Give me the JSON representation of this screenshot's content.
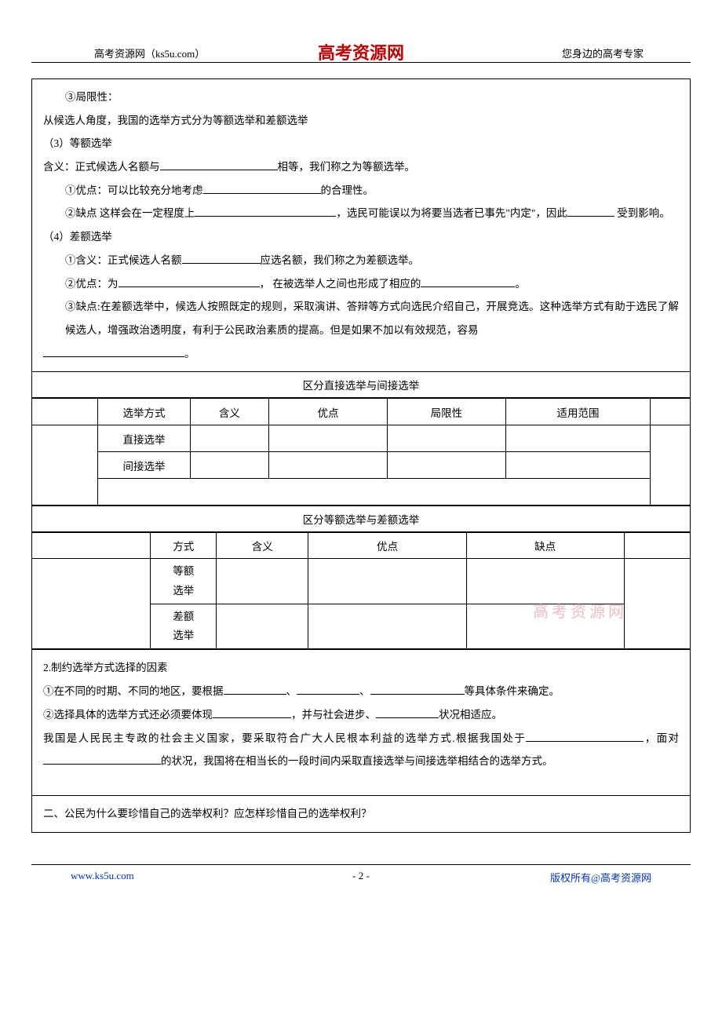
{
  "header": {
    "left": "高考资源网（ks5u.com）",
    "center": "高考资源网",
    "right": "您身边的高考专家"
  },
  "body": {
    "l1": "③局限性：",
    "l2": "从候选人角度，我国的选举方式分为等额选举和差额选举",
    "l3": "（3）等额选举",
    "l4a": "含义：正式候选人名额与",
    "l4b": "相等，我们称之为等额选举。",
    "l5a": "①优点：可以比较充分地考虑",
    "l5b": "的合理性。",
    "l6a": "②缺点 这样会在一定程度上",
    "l6b": "，选民可能误以为将要当选者已事先\"内定\"，因此",
    "l6c": "受到影响。",
    "l7": "（4）差额选举",
    "l8a": "①含义：正式候选人名额",
    "l8b": "应选名额，我们称之为差额选举。",
    "l9a": "②优点：为",
    "l9b": "， 在被选举人之间也形成了相应的",
    "l9c": "。",
    "l10": "③缺点:在差额选举中，候选人按照既定的规则，采取演讲、答辩等方式向选民介绍自己，开展竞选。这种选举方式有助于选民了解候选人，增强政治透明度，有利于公民政治素质的提高。但是如果不加以有效规范，容易",
    "l10b": "。"
  },
  "table1": {
    "title": "区分直接选举与间接选举",
    "headers": [
      "选举方式",
      "含义",
      "优点",
      "局限性",
      "适用范围"
    ],
    "rows": [
      "直接选举",
      "间接选举"
    ]
  },
  "table2": {
    "title": "区分等额选举与差额选举",
    "headers": [
      "方式",
      "含义",
      "优点",
      "缺点"
    ],
    "rows": [
      "等额选举",
      "差额选举"
    ]
  },
  "sec2": {
    "t1": "2.制约选举方式选择的因素",
    "t2a": "①在不同的时期、不同的地区，要根据",
    "t2b": "、",
    "t2c": "、",
    "t2d": "等具体条件来确定。",
    "t3a": "②选择具体的选举方式还必须要体现",
    "t3b": "，并与社会进步、",
    "t3c": "状况相适应。",
    "t4a": "我国是人民民主专政的社会主义国家，要采取符合广大人民根本利益的选举方式.根据我国处于",
    "t4b": "，面对",
    "t4c": "的状况，我国将在相当长的一段时间内采取直接选举与间接选举相结合的选举方式。"
  },
  "sec3": {
    "t": " 二、公民为什么要珍惜自己的选举权利？应怎样珍惜自己的选举权利？"
  },
  "watermark": "高考资源网",
  "footer": {
    "left": "www.ks5u.com",
    "center": "- 2 -",
    "right": "版权所有@高考资源网"
  }
}
